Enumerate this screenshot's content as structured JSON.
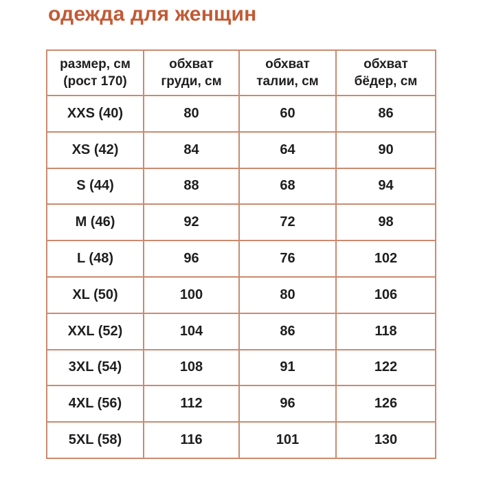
{
  "title": "одежда для женщин",
  "colors": {
    "accent": "#C25A35",
    "table_border": "#CB8A6F",
    "text": "#1E1E1E",
    "background": "#FFFFFF"
  },
  "table": {
    "headers": [
      {
        "line1": "размер, см",
        "line2": "(рост 170)"
      },
      {
        "line1": "обхват",
        "line2": "груди, см"
      },
      {
        "line1": "обхват",
        "line2": "талии, см"
      },
      {
        "line1": "обхват",
        "line2": "бёдер, см"
      }
    ],
    "rows": [
      {
        "size": "XXS (40)",
        "chest": "80",
        "waist": "60",
        "hips": "86"
      },
      {
        "size": "XS (42)",
        "chest": "84",
        "waist": "64",
        "hips": "90"
      },
      {
        "size": "S (44)",
        "chest": "88",
        "waist": "68",
        "hips": "94"
      },
      {
        "size": "M (46)",
        "chest": "92",
        "waist": "72",
        "hips": "98"
      },
      {
        "size": "L (48)",
        "chest": "96",
        "waist": "76",
        "hips": "102"
      },
      {
        "size": "XL (50)",
        "chest": "100",
        "waist": "80",
        "hips": "106"
      },
      {
        "size": "XXL (52)",
        "chest": "104",
        "waist": "86",
        "hips": "118"
      },
      {
        "size": "3XL (54)",
        "chest": "108",
        "waist": "91",
        "hips": "122"
      },
      {
        "size": "4XL (56)",
        "chest": "112",
        "waist": "96",
        "hips": "126"
      },
      {
        "size": "5XL (58)",
        "chest": "116",
        "waist": "101",
        "hips": "130"
      }
    ]
  }
}
